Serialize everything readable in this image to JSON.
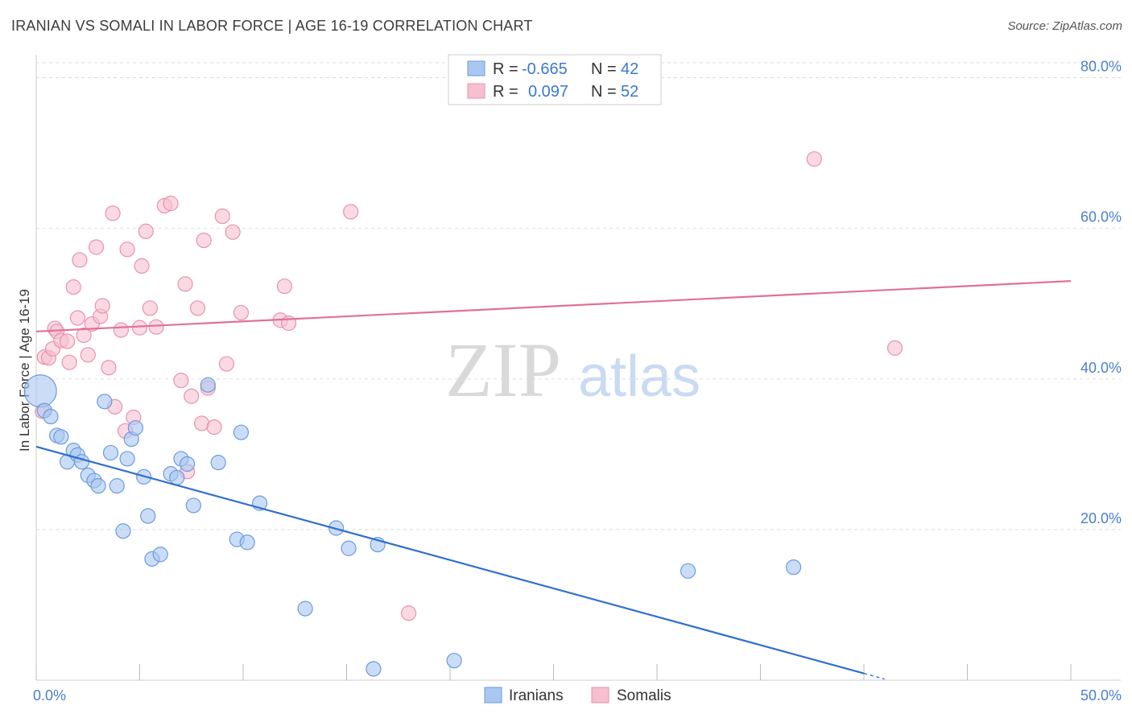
{
  "title": "IRANIAN VS SOMALI IN LABOR FORCE | AGE 16-19 CORRELATION CHART",
  "source": "Source: ZipAtlas.com",
  "watermark": {
    "zip": "ZIP",
    "atlas": "atlas"
  },
  "colors": {
    "iranians_fill": "#a9c7f0",
    "iranians_stroke": "#6a9be0",
    "iranians_line": "#2f6fd0",
    "somalis_fill": "#f7bfd0",
    "somalis_stroke": "#e892ad",
    "somalis_line": "#e0709a",
    "grid": "#dddddd",
    "axis_label": "#4a7fcf"
  },
  "legend": {
    "rows": [
      {
        "r_label": "R =",
        "r_value": "-0.665",
        "n_label": "N =",
        "n_value": "42"
      },
      {
        "r_label": "R =",
        "r_value": "0.097",
        "n_label": "N =",
        "n_value": "52"
      }
    ]
  },
  "bottom_legend": [
    "Iranians",
    "Somalis"
  ],
  "chart_data": {
    "type": "scatter",
    "title": "IRANIAN VS SOMALI IN LABOR FORCE | AGE 16-19 CORRELATION CHART",
    "xlabel": "",
    "ylabel": "In Labor Force | Age 16-19",
    "xlim": [
      0,
      50
    ],
    "ylim": [
      0,
      80
    ],
    "x_tick_labels": [
      "0.0%",
      "50.0%"
    ],
    "y_ticks": [
      20,
      40,
      60,
      80
    ],
    "y_tick_labels": [
      "20.0%",
      "40.0%",
      "60.0%",
      "80.0%"
    ],
    "grid": true,
    "legend_position": "top-center",
    "series": [
      {
        "name": "Iranians",
        "r": -0.665,
        "n": 42,
        "trend": {
          "x": [
            0,
            40
          ],
          "y": [
            31,
            0.9
          ]
        },
        "points": [
          {
            "x": 0.2,
            "y": 38.4,
            "big": true
          },
          {
            "x": 0.4,
            "y": 35.8
          },
          {
            "x": 0.7,
            "y": 35.0
          },
          {
            "x": 1.0,
            "y": 32.5
          },
          {
            "x": 1.2,
            "y": 32.3
          },
          {
            "x": 1.5,
            "y": 29.0
          },
          {
            "x": 1.8,
            "y": 30.5
          },
          {
            "x": 2.0,
            "y": 29.9
          },
          {
            "x": 2.2,
            "y": 29.0
          },
          {
            "x": 2.5,
            "y": 27.2
          },
          {
            "x": 2.8,
            "y": 26.5
          },
          {
            "x": 3.0,
            "y": 25.8
          },
          {
            "x": 3.3,
            "y": 37.0
          },
          {
            "x": 3.6,
            "y": 30.2
          },
          {
            "x": 3.9,
            "y": 25.8
          },
          {
            "x": 4.2,
            "y": 19.8
          },
          {
            "x": 4.4,
            "y": 29.4
          },
          {
            "x": 4.6,
            "y": 32.0
          },
          {
            "x": 4.8,
            "y": 33.5
          },
          {
            "x": 5.2,
            "y": 27.0
          },
          {
            "x": 5.4,
            "y": 21.8
          },
          {
            "x": 5.6,
            "y": 16.1
          },
          {
            "x": 6.0,
            "y": 16.7
          },
          {
            "x": 6.5,
            "y": 27.4
          },
          {
            "x": 6.8,
            "y": 26.9
          },
          {
            "x": 7.0,
            "y": 29.4
          },
          {
            "x": 7.3,
            "y": 28.7
          },
          {
            "x": 7.6,
            "y": 23.2
          },
          {
            "x": 8.3,
            "y": 39.2
          },
          {
            "x": 8.8,
            "y": 28.9
          },
          {
            "x": 9.7,
            "y": 18.7
          },
          {
            "x": 9.9,
            "y": 32.9
          },
          {
            "x": 10.2,
            "y": 18.3
          },
          {
            "x": 10.8,
            "y": 23.5
          },
          {
            "x": 13.0,
            "y": 9.5
          },
          {
            "x": 14.5,
            "y": 20.2
          },
          {
            "x": 15.1,
            "y": 17.5
          },
          {
            "x": 16.3,
            "y": 1.5
          },
          {
            "x": 16.5,
            "y": 18.0
          },
          {
            "x": 20.2,
            "y": 2.6
          },
          {
            "x": 31.5,
            "y": 14.5
          },
          {
            "x": 36.6,
            "y": 15.0
          }
        ]
      },
      {
        "name": "Somalis",
        "r": 0.097,
        "n": 52,
        "trend": {
          "x": [
            0,
            50
          ],
          "y": [
            46.3,
            53.0
          ]
        },
        "points": [
          {
            "x": 0.3,
            "y": 35.7
          },
          {
            "x": 0.4,
            "y": 42.9
          },
          {
            "x": 0.6,
            "y": 42.8
          },
          {
            "x": 0.8,
            "y": 44.0
          },
          {
            "x": 0.9,
            "y": 46.7
          },
          {
            "x": 1.0,
            "y": 46.3
          },
          {
            "x": 1.2,
            "y": 45.1
          },
          {
            "x": 1.5,
            "y": 45.0
          },
          {
            "x": 1.6,
            "y": 42.2
          },
          {
            "x": 1.8,
            "y": 52.2
          },
          {
            "x": 2.0,
            "y": 48.1
          },
          {
            "x": 2.1,
            "y": 55.8
          },
          {
            "x": 2.3,
            "y": 45.8
          },
          {
            "x": 2.5,
            "y": 43.2
          },
          {
            "x": 2.7,
            "y": 47.3
          },
          {
            "x": 2.9,
            "y": 57.5
          },
          {
            "x": 3.1,
            "y": 48.3
          },
          {
            "x": 3.2,
            "y": 49.7
          },
          {
            "x": 3.5,
            "y": 41.5
          },
          {
            "x": 3.7,
            "y": 62.0
          },
          {
            "x": 3.8,
            "y": 36.3
          },
          {
            "x": 4.1,
            "y": 46.5
          },
          {
            "x": 4.3,
            "y": 33.1
          },
          {
            "x": 4.4,
            "y": 57.2
          },
          {
            "x": 4.7,
            "y": 34.9
          },
          {
            "x": 5.0,
            "y": 46.8
          },
          {
            "x": 5.1,
            "y": 55.0
          },
          {
            "x": 5.3,
            "y": 59.6
          },
          {
            "x": 5.5,
            "y": 49.4
          },
          {
            "x": 5.8,
            "y": 46.9
          },
          {
            "x": 6.2,
            "y": 63.0
          },
          {
            "x": 6.5,
            "y": 63.3
          },
          {
            "x": 7.0,
            "y": 39.8
          },
          {
            "x": 7.2,
            "y": 52.6
          },
          {
            "x": 7.3,
            "y": 27.7
          },
          {
            "x": 7.5,
            "y": 37.7
          },
          {
            "x": 7.8,
            "y": 49.4
          },
          {
            "x": 8.0,
            "y": 34.1
          },
          {
            "x": 8.1,
            "y": 58.4
          },
          {
            "x": 8.3,
            "y": 38.8
          },
          {
            "x": 8.6,
            "y": 33.6
          },
          {
            "x": 9.0,
            "y": 61.6
          },
          {
            "x": 9.2,
            "y": 42.0
          },
          {
            "x": 9.5,
            "y": 59.5
          },
          {
            "x": 9.9,
            "y": 48.8
          },
          {
            "x": 11.8,
            "y": 47.8
          },
          {
            "x": 12.0,
            "y": 52.3
          },
          {
            "x": 12.2,
            "y": 47.4
          },
          {
            "x": 15.2,
            "y": 62.2
          },
          {
            "x": 18.0,
            "y": 8.9
          },
          {
            "x": 37.6,
            "y": 69.2
          },
          {
            "x": 41.5,
            "y": 44.1
          }
        ]
      }
    ]
  }
}
